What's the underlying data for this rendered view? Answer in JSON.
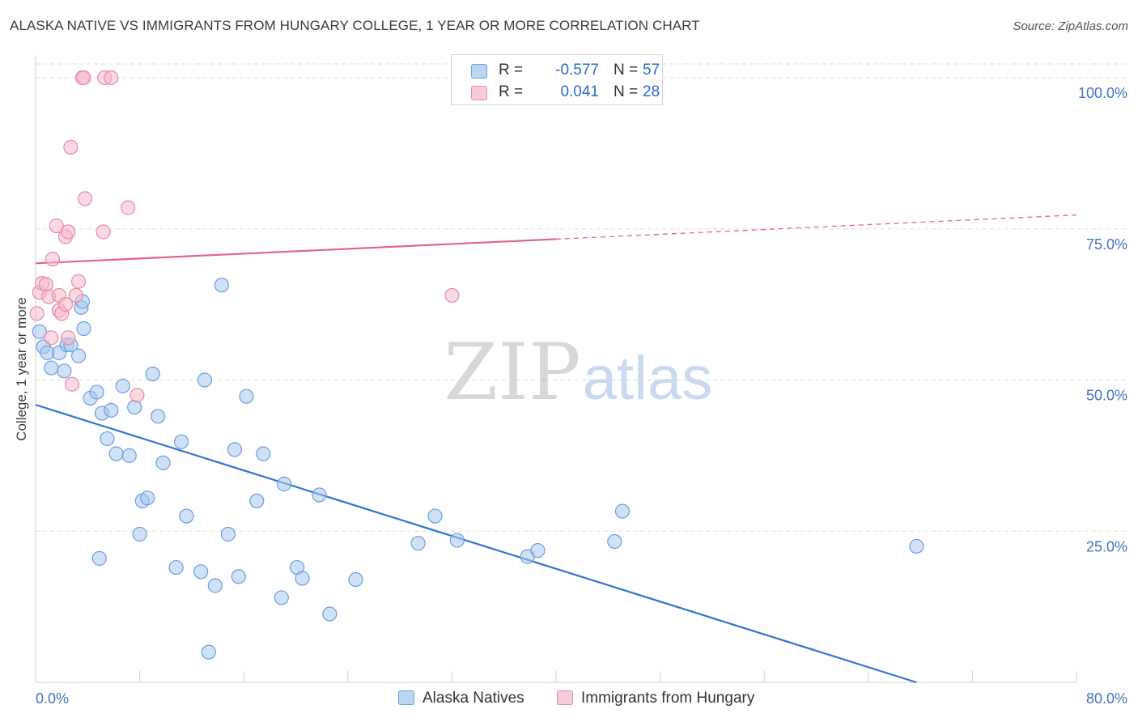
{
  "title": "ALASKA NATIVE VS IMMIGRANTS FROM HUNGARY COLLEGE, 1 YEAR OR MORE CORRELATION CHART",
  "source": "Source: ZipAtlas.com",
  "watermark": {
    "zip": "ZIP",
    "atlas": "atlas"
  },
  "colors": {
    "blue_fill": "#a9c8ee",
    "blue_stroke": "#6c9ee0",
    "blue_line": "#2f74d0",
    "pink_fill": "#f6b9cb",
    "pink_stroke": "#e88aa6",
    "pink_line": "#e2658a",
    "tick_label": "#4472c4",
    "grid": "#dddddd"
  },
  "legend": {
    "rows": [
      {
        "r_label": "R =",
        "r_value": "-0.577",
        "n_label": "N =",
        "n_value": "57"
      },
      {
        "r_label": "R =",
        "r_value": "0.041",
        "n_label": "N =",
        "n_value": "28"
      }
    ]
  },
  "bottom_legend": {
    "series1": "Alaska Natives",
    "series2": "Immigrants from Hungary"
  },
  "chart_data": {
    "type": "scatter",
    "title": "ALASKA NATIVE VS IMMIGRANTS FROM HUNGARY COLLEGE, 1 YEAR OR MORE CORRELATION CHART",
    "xlabel": "",
    "ylabel": "College, 1 year or more",
    "xlim": [
      0,
      80
    ],
    "ylim": [
      0,
      100
    ],
    "x_tick_labels": [
      "0.0%",
      "80.0%"
    ],
    "y_tick_labels": [
      "100.0%",
      "75.0%",
      "50.0%",
      "25.0%"
    ],
    "y_ticks": [
      100,
      75,
      50,
      25
    ],
    "grid": true,
    "series": [
      {
        "name": "Alaska Natives",
        "color": "#a9c8ee",
        "points": [
          [
            0.3,
            58.0
          ],
          [
            0.6,
            55.5
          ],
          [
            0.9,
            54.5
          ],
          [
            1.2,
            52.0
          ],
          [
            1.8,
            54.5
          ],
          [
            2.2,
            51.5
          ],
          [
            2.4,
            55.8
          ],
          [
            2.7,
            55.8
          ],
          [
            3.3,
            54.0
          ],
          [
            3.5,
            62.0
          ],
          [
            3.6,
            63.0
          ],
          [
            3.7,
            58.5
          ],
          [
            4.2,
            47.0
          ],
          [
            4.7,
            48.0
          ],
          [
            5.1,
            44.5
          ],
          [
            5.5,
            40.3
          ],
          [
            5.8,
            45.0
          ],
          [
            6.2,
            37.8
          ],
          [
            6.7,
            49.0
          ],
          [
            7.2,
            37.5
          ],
          [
            7.6,
            45.5
          ],
          [
            8.0,
            24.5
          ],
          [
            8.2,
            30.0
          ],
          [
            8.6,
            30.5
          ],
          [
            9.0,
            51.0
          ],
          [
            9.4,
            44.0
          ],
          [
            9.8,
            36.3
          ],
          [
            10.8,
            19.0
          ],
          [
            11.2,
            39.8
          ],
          [
            11.6,
            27.5
          ],
          [
            12.7,
            18.3
          ],
          [
            13.0,
            50.0
          ],
          [
            13.3,
            5.0
          ],
          [
            13.8,
            16.0
          ],
          [
            14.3,
            65.7
          ],
          [
            14.8,
            24.5
          ],
          [
            15.3,
            38.5
          ],
          [
            15.6,
            17.5
          ],
          [
            16.2,
            47.3
          ],
          [
            17.0,
            30.0
          ],
          [
            17.5,
            37.8
          ],
          [
            18.9,
            14.0
          ],
          [
            19.1,
            32.8
          ],
          [
            20.1,
            19.0
          ],
          [
            20.5,
            17.2
          ],
          [
            21.8,
            31.0
          ],
          [
            22.6,
            11.3
          ],
          [
            24.6,
            17.0
          ],
          [
            29.4,
            23.0
          ],
          [
            30.7,
            27.5
          ],
          [
            32.4,
            23.5
          ],
          [
            37.8,
            20.8
          ],
          [
            38.6,
            21.8
          ],
          [
            44.5,
            23.3
          ],
          [
            45.1,
            28.3
          ],
          [
            67.7,
            22.5
          ],
          [
            4.9,
            20.5
          ]
        ]
      },
      {
        "name": "Immigrants from Hungary",
        "color": "#f6b9cb",
        "points": [
          [
            0.1,
            61.0
          ],
          [
            0.3,
            64.5
          ],
          [
            0.5,
            66.0
          ],
          [
            0.8,
            65.8
          ],
          [
            1.0,
            63.8
          ],
          [
            1.2,
            57.0
          ],
          [
            1.3,
            70.0
          ],
          [
            1.6,
            75.5
          ],
          [
            1.8,
            61.5
          ],
          [
            1.8,
            64.0
          ],
          [
            2.0,
            61.0
          ],
          [
            2.3,
            62.5
          ],
          [
            2.3,
            73.7
          ],
          [
            2.5,
            74.5
          ],
          [
            2.5,
            57.0
          ],
          [
            2.7,
            88.5
          ],
          [
            2.8,
            49.3
          ],
          [
            3.1,
            64.0
          ],
          [
            3.3,
            66.3
          ],
          [
            3.6,
            100.0
          ],
          [
            3.8,
            80.0
          ],
          [
            5.2,
            74.5
          ],
          [
            5.3,
            100.0
          ],
          [
            5.8,
            100.0
          ],
          [
            7.1,
            78.5
          ],
          [
            7.8,
            47.5
          ],
          [
            32.0,
            64.0
          ],
          [
            3.7,
            100.0
          ]
        ]
      }
    ],
    "trendlines": [
      {
        "name": "Alaska Natives",
        "x": [
          0,
          67.7
        ],
        "y": [
          45.9,
          0
        ],
        "style": "solid"
      },
      {
        "name": "Immigrants from Hungary",
        "x": [
          0,
          40
        ],
        "y": [
          69.3,
          73.3
        ],
        "style": "solid"
      },
      {
        "name": "Immigrants from Hungary",
        "x": [
          40,
          80
        ],
        "y": [
          73.3,
          77.3
        ],
        "style": "dashed"
      }
    ]
  }
}
